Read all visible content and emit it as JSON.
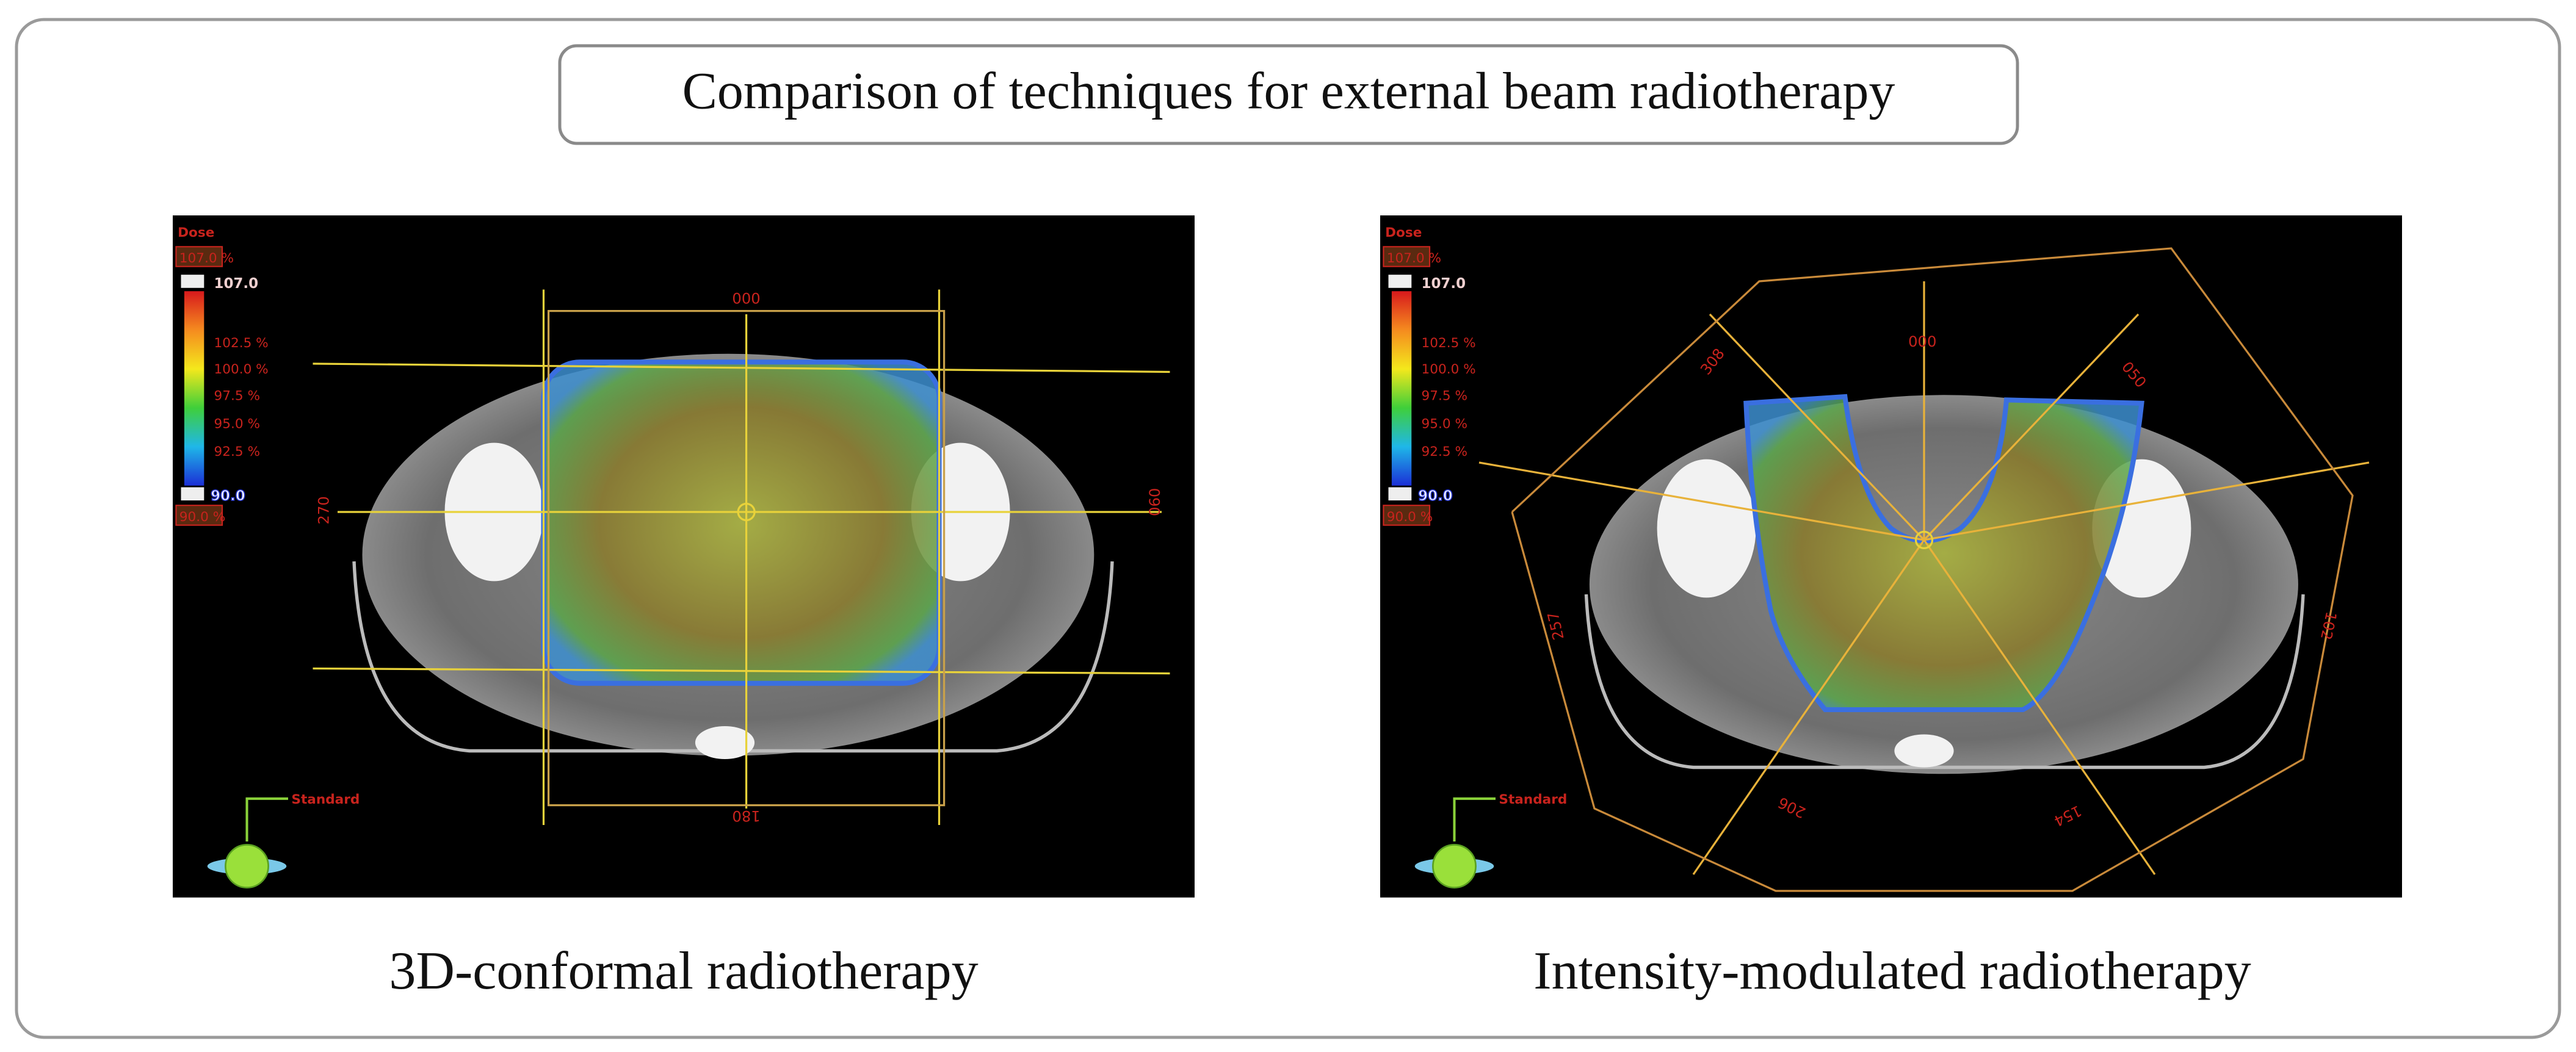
{
  "header": {
    "title": "Comparison of techniques for external beam radiotherapy"
  },
  "panels": [
    {
      "caption": "3D-conformal radiotherapy",
      "dose": {
        "title": "Dose",
        "top_value": "107.0 %",
        "max": "107.0",
        "levels": [
          "102.5 %",
          "100.0 %",
          "97.5 %",
          "95.0 %",
          "92.5 %"
        ],
        "min": "90.0",
        "bottom_value": "90.0 %"
      },
      "view": "Standard",
      "gantry_angles": [
        "000",
        "090",
        "180",
        "270"
      ]
    },
    {
      "caption": "Intensity-modulated radiotherapy",
      "dose": {
        "title": "Dose",
        "top_value": "107.0 %",
        "max": "107.0",
        "levels": [
          "102.5 %",
          "100.0 %",
          "97.5 %",
          "95.0 %",
          "92.5 %"
        ],
        "min": "90.0",
        "bottom_value": "90.0 %"
      },
      "view": "Standard",
      "gantry_angles": [
        "000",
        "050",
        "102",
        "154",
        "206",
        "257",
        "308"
      ]
    }
  ]
}
